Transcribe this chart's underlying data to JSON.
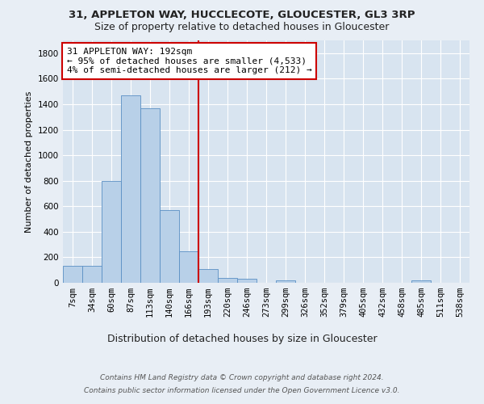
{
  "title_line1": "31, APPLETON WAY, HUCCLECOTE, GLOUCESTER, GL3 3RP",
  "title_line2": "Size of property relative to detached houses in Gloucester",
  "xlabel": "Distribution of detached houses by size in Gloucester",
  "ylabel": "Number of detached properties",
  "categories": [
    "7sqm",
    "34sqm",
    "60sqm",
    "87sqm",
    "113sqm",
    "140sqm",
    "166sqm",
    "193sqm",
    "220sqm",
    "246sqm",
    "273sqm",
    "299sqm",
    "326sqm",
    "352sqm",
    "379sqm",
    "405sqm",
    "432sqm",
    "458sqm",
    "485sqm",
    "511sqm",
    "538sqm"
  ],
  "values": [
    130,
    130,
    800,
    1470,
    1370,
    570,
    250,
    110,
    35,
    30,
    0,
    20,
    0,
    0,
    0,
    0,
    0,
    0,
    20,
    0,
    0
  ],
  "bar_color": "#b8d0e8",
  "bar_edge_color": "#5a8fc4",
  "marker_bar_index": 7,
  "annotation_title": "31 APPLETON WAY: 192sqm",
  "annotation_line1": "← 95% of detached houses are smaller (4,533)",
  "annotation_line2": "4% of semi-detached houses are larger (212) →",
  "marker_color": "#cc0000",
  "footer_line1": "Contains HM Land Registry data © Crown copyright and database right 2024.",
  "footer_line2": "Contains public sector information licensed under the Open Government Licence v3.0.",
  "ylim": [
    0,
    1900
  ],
  "yticks": [
    0,
    200,
    400,
    600,
    800,
    1000,
    1200,
    1400,
    1600,
    1800
  ],
  "fig_bg_color": "#e8eef5",
  "plot_bg_color": "#d8e4f0",
  "grid_color": "#ffffff",
  "title1_fontsize": 9.5,
  "title2_fontsize": 9,
  "ylabel_fontsize": 8,
  "xlabel_fontsize": 9,
  "tick_fontsize": 7.5,
  "footer_fontsize": 6.5,
  "annotation_fontsize": 8
}
